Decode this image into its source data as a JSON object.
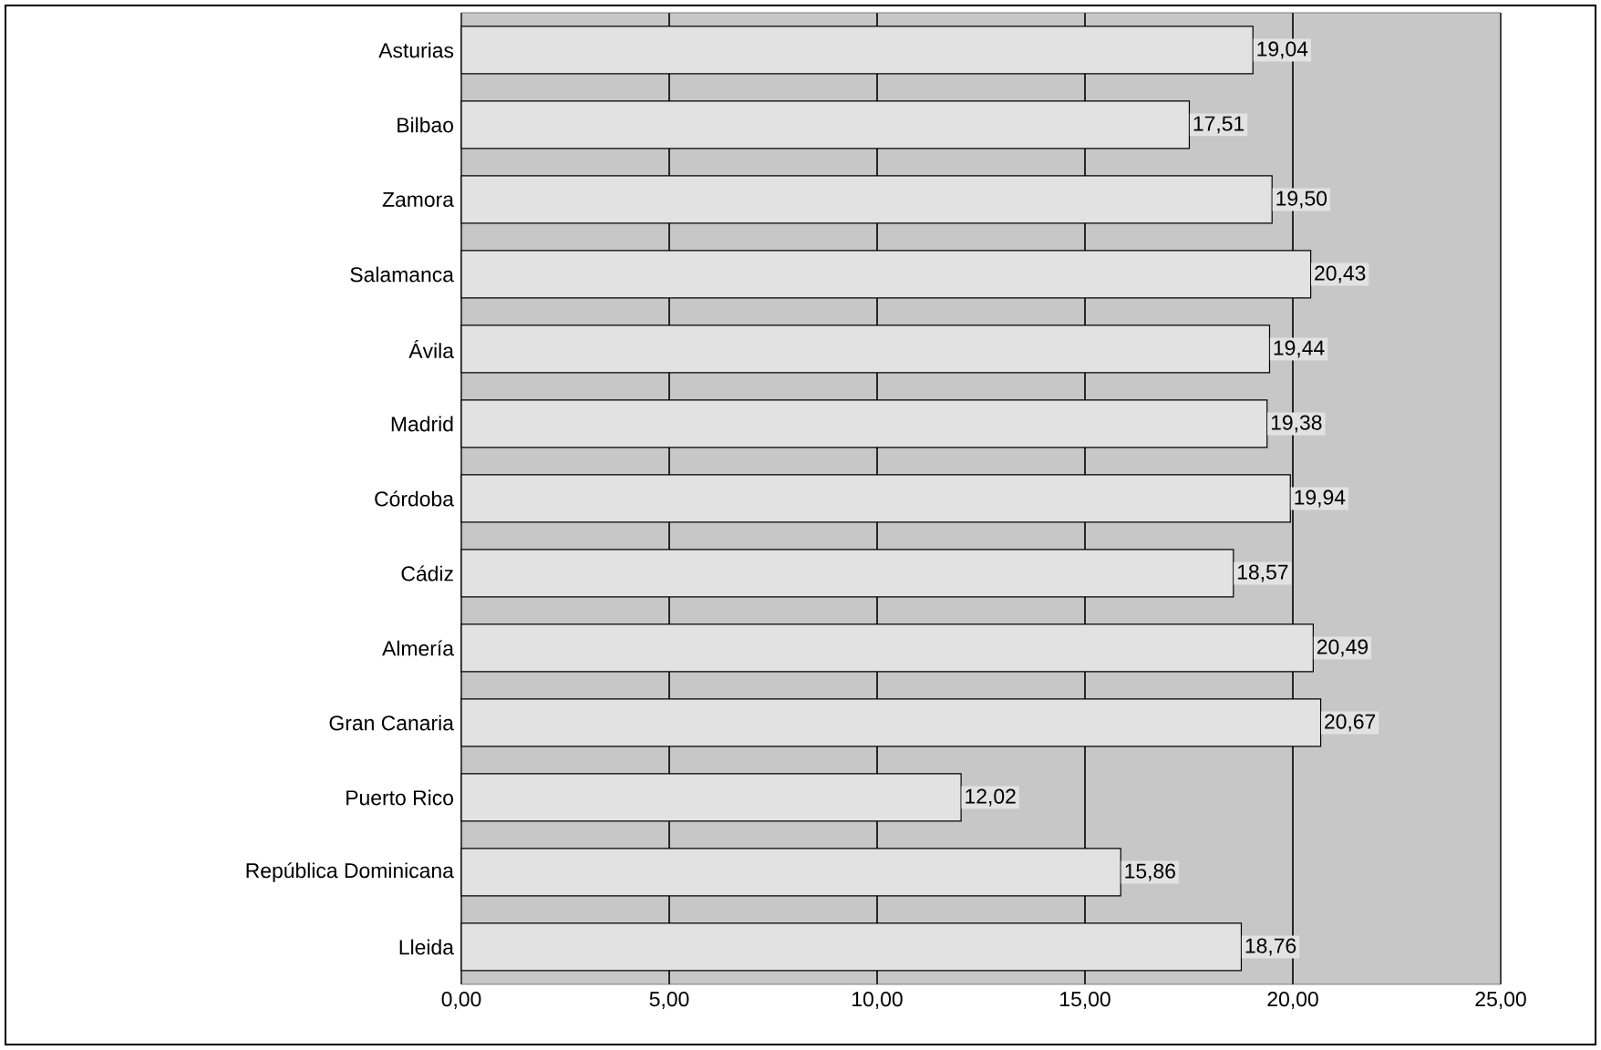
{
  "chart_data": {
    "type": "bar",
    "orientation": "horizontal",
    "categories": [
      "Asturias",
      "Bilbao",
      "Zamora",
      "Salamanca",
      "Ávila",
      "Madrid",
      "Córdoba",
      "Cádiz",
      "Almería",
      "Gran Canaria",
      "Puerto Rico",
      "República Dominicana",
      "Lleida"
    ],
    "values": [
      19.04,
      17.51,
      19.5,
      20.43,
      19.44,
      19.38,
      19.94,
      18.57,
      20.49,
      20.67,
      12.02,
      15.86,
      18.76
    ],
    "value_labels": [
      "19,04",
      "17,51",
      "19,50",
      "20,43",
      "19,44",
      "19,38",
      "19,94",
      "18,57",
      "20,49",
      "20,67",
      "12,02",
      "15,86",
      "18,76"
    ],
    "color": "#e2e2e2",
    "xlim": [
      0,
      25
    ],
    "xticks": [
      {
        "value": 0,
        "label": "0,00"
      },
      {
        "value": 5,
        "label": "5,00"
      },
      {
        "value": 10,
        "label": "10,00"
      },
      {
        "value": 15,
        "label": "15,00"
      },
      {
        "value": 20,
        "label": "20,00"
      },
      {
        "value": 25,
        "label": "25,00"
      }
    ],
    "grid": "x"
  }
}
